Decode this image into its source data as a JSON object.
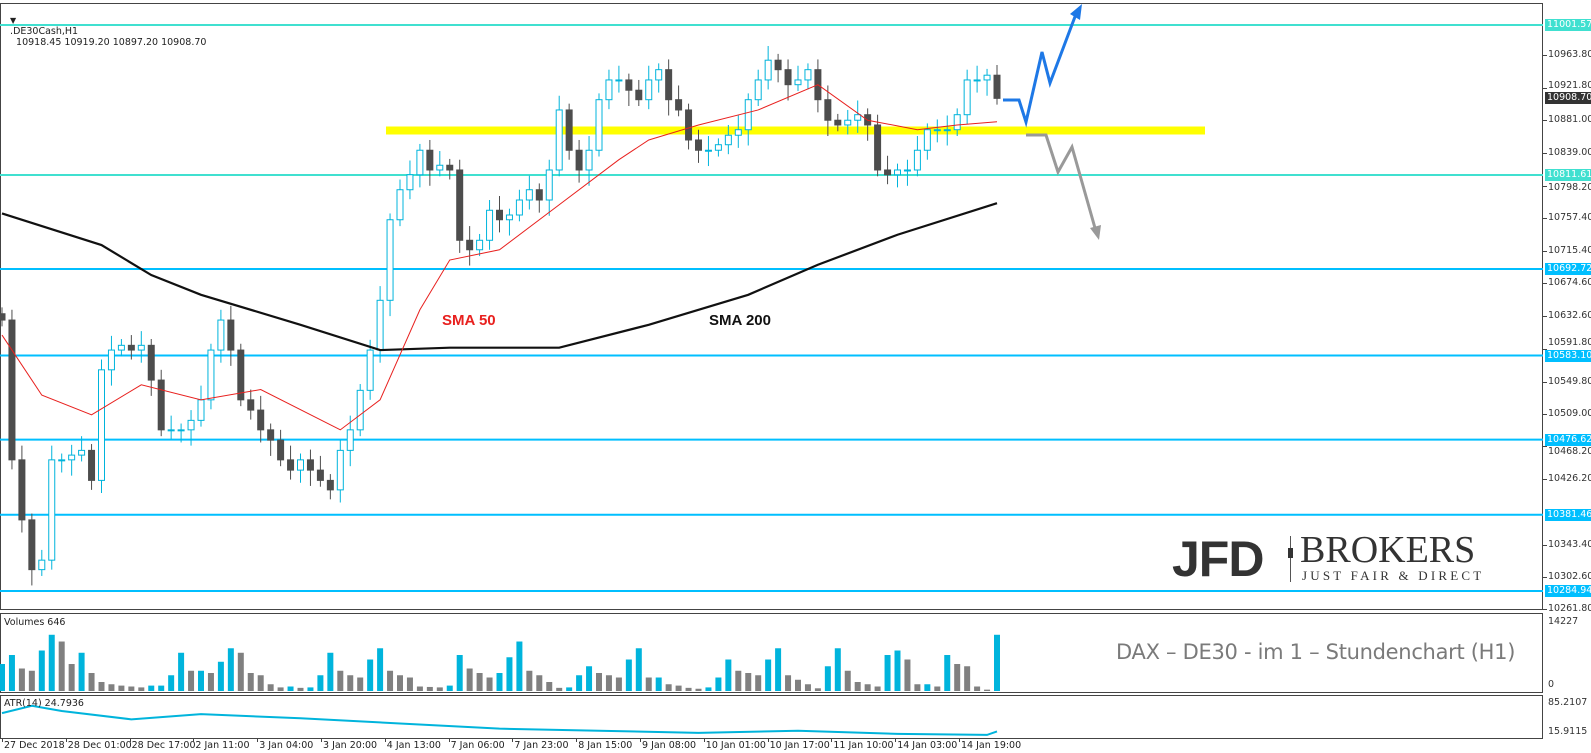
{
  "header": {
    "symbol": ".DE30Cash,H1",
    "ohlc": "10918.45 10919.20 10897.20 10908.70",
    "menu_icon": "triangle-down-icon"
  },
  "logo": {
    "brand": "JFD",
    "brand2": "BROKERS",
    "tagline": "JUST FAIR & DIRECT"
  },
  "caption": "DAX – DE30 - im 1 – Stundenchart (H1)",
  "labels": {
    "sma50": "SMA 50",
    "sma200": "SMA 200"
  },
  "colors": {
    "bull": "#00b4dc",
    "bear": "#4d4d4d",
    "sma50": "#e8201e",
    "sma200": "#111111",
    "zone": "#ffff00",
    "level_aqua": "#40e0d0",
    "level_blue": "#00bfff",
    "arrow_up": "#1e78e6",
    "arrow_down": "#999999",
    "atr": "#00b4dc",
    "current_tag": "#333333"
  },
  "chart_data": {
    "type": "candlestick",
    "ylim": [
      10261.8,
      11033
    ],
    "y_ticks": [
      "10963.80",
      "10921.80",
      "10881.00",
      "10839.00",
      "10798.20",
      "10757.40",
      "10715.40",
      "10674.60",
      "10632.60",
      "10591.80",
      "10549.80",
      "10509.00",
      "10468.20",
      "10426.20",
      "10343.40",
      "10302.60",
      "10261.80"
    ],
    "x_ticks": [
      "27 Dec 2018",
      "28 Dec 01:00",
      "28 Dec 17:00",
      "2 Jan 11:00",
      "3 Jan 04:00",
      "3 Jan 20:00",
      "4 Jan 13:00",
      "7 Jan 06:00",
      "7 Jan 23:00",
      "8 Jan 15:00",
      "9 Jan 08:00",
      "10 Jan 01:00",
      "10 Jan 17:00",
      "11 Jan 10:00",
      "14 Jan 03:00",
      "14 Jan 19:00"
    ],
    "closes": [
      10628,
      10451,
      10375,
      10312,
      10324,
      10451,
      10451,
      10457,
      10463,
      10425,
      10565,
      10590,
      10596,
      10590,
      10596,
      10552,
      10489,
      10489,
      10489,
      10501,
      10527,
      10590,
      10628,
      10590,
      10527,
      10514,
      10489,
      10476,
      10451,
      10438,
      10451,
      10438,
      10425,
      10413,
      10463,
      10489,
      10539,
      10590,
      10653,
      10755,
      10793,
      10812,
      10843,
      10818,
      10824,
      10818,
      10729,
      10717,
      10729,
      10767,
      10755,
      10761,
      10780,
      10793,
      10780,
      10818,
      10894,
      10843,
      10818,
      10843,
      10907,
      10932,
      10932,
      10919,
      10907,
      10932,
      10945,
      10907,
      10894,
      10856,
      10843,
      10843,
      10850,
      10862,
      10869,
      10907,
      10932,
      10957,
      10945,
      10926,
      10932,
      10945,
      10907,
      10881,
      10875,
      10881,
      10888,
      10875,
      10818,
      10812,
      10818,
      10818,
      10843,
      10869,
      10869,
      10869,
      10888,
      10932,
      10932,
      10938,
      10908.7
    ],
    "last_price": "10908.70",
    "sma50": [
      [
        0,
        10609
      ],
      [
        4,
        10533
      ],
      [
        9,
        10508
      ],
      [
        14,
        10546
      ],
      [
        20,
        10527
      ],
      [
        26,
        10540
      ],
      [
        34,
        10489
      ],
      [
        38,
        10527
      ],
      [
        42,
        10641
      ],
      [
        45,
        10704
      ],
      [
        50,
        10717
      ],
      [
        56,
        10774
      ],
      [
        62,
        10831
      ],
      [
        65,
        10856
      ],
      [
        70,
        10875
      ],
      [
        76,
        10894
      ],
      [
        82,
        10926
      ],
      [
        87,
        10881
      ],
      [
        92,
        10869
      ],
      [
        96,
        10875
      ],
      [
        100,
        10879
      ]
    ],
    "sma200": [
      [
        0,
        10763
      ],
      [
        10,
        10723
      ],
      [
        15,
        10685
      ],
      [
        20,
        10660
      ],
      [
        30,
        10622
      ],
      [
        38,
        10590
      ],
      [
        45,
        10593
      ],
      [
        56,
        10593
      ],
      [
        65,
        10622
      ],
      [
        75,
        10660
      ],
      [
        82,
        10698
      ],
      [
        90,
        10736
      ],
      [
        100,
        10776
      ]
    ],
    "levels": [
      {
        "price": 11001.57,
        "label": "11001.57",
        "color": "level_aqua"
      },
      {
        "price": 10811.61,
        "label": "10811.61",
        "color": "level_aqua"
      },
      {
        "price": 10692.72,
        "label": "10692.72",
        "color": "level_blue"
      },
      {
        "price": 10583.1,
        "label": "10583.10",
        "color": "level_blue"
      },
      {
        "price": 10476.62,
        "label": "10476.62",
        "color": "level_blue"
      },
      {
        "price": 10381.46,
        "label": "10381.46",
        "color": "level_blue"
      },
      {
        "price": 10284.94,
        "label": "10284.94",
        "color": "level_blue"
      }
    ],
    "zone_price": 10868,
    "volume": {
      "title": "Volumes 646",
      "max_label": "14227",
      "min_label": "0",
      "ylim": [
        0,
        14227
      ],
      "values": [
        6000,
        8000,
        5000,
        4500,
        9000,
        12500,
        11000,
        6000,
        8500,
        4000,
        2000,
        1500,
        1200,
        1000,
        800,
        1200,
        1200,
        3500,
        8500,
        4500,
        4500,
        4000,
        6500,
        9500,
        8500,
        4000,
        3500,
        1500,
        800,
        1000,
        700,
        800,
        3500,
        8500,
        4500,
        3500,
        3000,
        7000,
        9500,
        4500,
        3500,
        3000,
        1000,
        900,
        800,
        1200,
        8000,
        5000,
        4000,
        3000,
        4000,
        7500,
        11000,
        4500,
        3500,
        2000,
        700,
        800,
        3500,
        5500,
        4000,
        3500,
        3000,
        7000,
        9500,
        3000,
        3000,
        1500,
        1200,
        700,
        500,
        800,
        3000,
        7000,
        4500,
        4000,
        3500,
        7000,
        9500,
        3500,
        2500,
        1500,
        600,
        5500,
        9500,
        4500,
        2000,
        1500,
        1000,
        8000,
        9000,
        7000,
        1500,
        1500,
        1000,
        8000,
        6000,
        5500,
        1000,
        300,
        12500
      ]
    },
    "atr": {
      "title": "ATR(14) 24.7936",
      "max_label": "85.2107",
      "min_label": "15.9115",
      "ylim": [
        15.9115,
        85.2107
      ],
      "points": [
        [
          0,
          60
        ],
        [
          3,
          74
        ],
        [
          6,
          64
        ],
        [
          13,
          48
        ],
        [
          20,
          58
        ],
        [
          30,
          50
        ],
        [
          40,
          40
        ],
        [
          50,
          30
        ],
        [
          60,
          26
        ],
        [
          70,
          22
        ],
        [
          80,
          26
        ],
        [
          90,
          20
        ],
        [
          99,
          18
        ],
        [
          100,
          24.79
        ]
      ]
    }
  }
}
